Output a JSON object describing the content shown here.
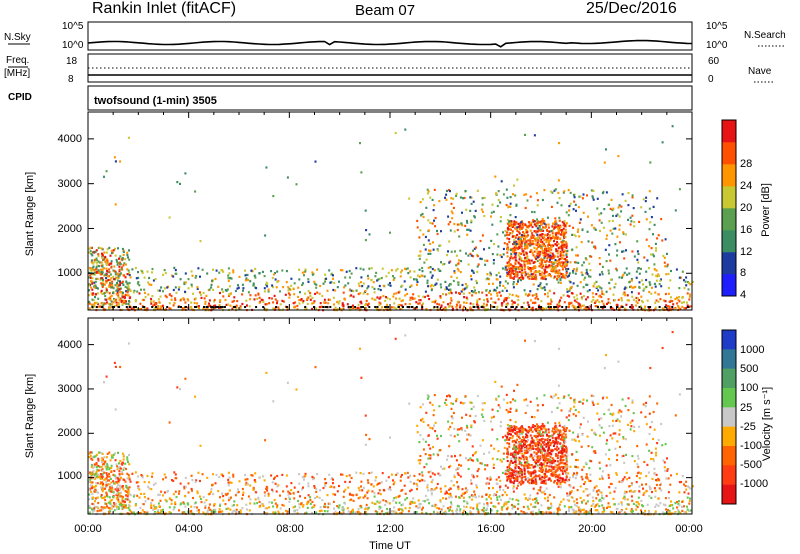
{
  "header": {
    "station": "Rankin Inlet (fitACF)",
    "beam": "Beam 07",
    "date": "25/Dec/2016"
  },
  "top_panels": {
    "nsky_label": "N.Sky",
    "nsky_ticks": [
      "10^5",
      "10^0"
    ],
    "nsearch_label": "N.Search",
    "nsearch_ticks": [
      "10^5",
      "10^0"
    ],
    "freq_label": "Freq.",
    "freq_unit": "[MHz]",
    "freq_ticks": [
      "18",
      "8"
    ],
    "nave_label": "Nave",
    "nave_ticks": [
      "60",
      "0"
    ],
    "cpid_label": "CPID",
    "cpid_value": "twofsound (1-min) 3505"
  },
  "colors": {
    "power": [
      "#1e1eff",
      "#1e3ca0",
      "#3c8c64",
      "#5aa050",
      "#c8c832",
      "#ff9600",
      "#ff5000",
      "#e61414"
    ],
    "velocity": [
      "#1e3cc8",
      "#327896",
      "#50a064",
      "#64c850",
      "#c8c8c8",
      "#ffaa00",
      "#ff6400",
      "#ff3c14",
      "#e61414"
    ]
  },
  "chart_data": [
    {
      "type": "heatmap",
      "panel": "power",
      "ylabel": "Slant Range [km]",
      "ylim": [
        180,
        4600
      ],
      "yticks": [
        "1000",
        "2000",
        "3000",
        "4000"
      ],
      "xlim": [
        0,
        24
      ],
      "colorbar_label": "Power [dB]",
      "colorbar_ticks": [
        "4",
        "8",
        "12",
        "16",
        "20",
        "24",
        "28"
      ],
      "grid": false
    },
    {
      "type": "heatmap",
      "panel": "velocity",
      "ylabel": "Slant Range [km]",
      "ylim": [
        180,
        4600
      ],
      "yticks": [
        "1000",
        "2000",
        "3000",
        "4000"
      ],
      "xlim": [
        0,
        24
      ],
      "xlabel": "Time UT",
      "xticks": [
        "00:00",
        "04:00",
        "08:00",
        "12:00",
        "16:00",
        "20:00",
        "00:00"
      ],
      "colorbar_label": "Velocity [m s⁻¹]",
      "colorbar_ticks": [
        "1000",
        "500",
        "100",
        "25",
        "-25",
        "-100",
        "-500",
        "-1000"
      ],
      "grid": false
    }
  ]
}
